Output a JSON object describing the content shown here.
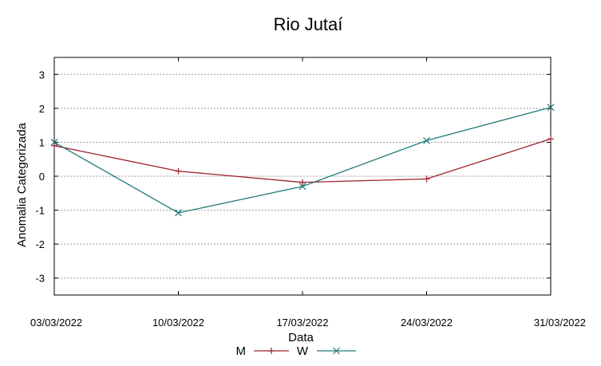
{
  "chart_data": {
    "type": "line",
    "title": "Rio Jutaí",
    "xlabel": "Data",
    "ylabel": "Anomalia Categorizada",
    "categories": [
      "03/03/2022",
      "10/03/2022",
      "17/03/2022",
      "24/03/2022",
      "31/03/2022"
    ],
    "yticks": [
      3,
      2,
      1,
      0,
      -1,
      -2,
      -3
    ],
    "ylim": [
      -3.5,
      3.5
    ],
    "grid": true,
    "legend_position": "bottom",
    "series": [
      {
        "name": "M",
        "values": [
          0.9,
          0.15,
          -0.18,
          -0.08,
          1.1
        ],
        "color": "#a0202a",
        "marker": "plus"
      },
      {
        "name": "W",
        "values": [
          1.0,
          -1.08,
          -0.3,
          1.05,
          2.03
        ],
        "color": "#1f7a7a",
        "marker": "cross"
      }
    ]
  }
}
